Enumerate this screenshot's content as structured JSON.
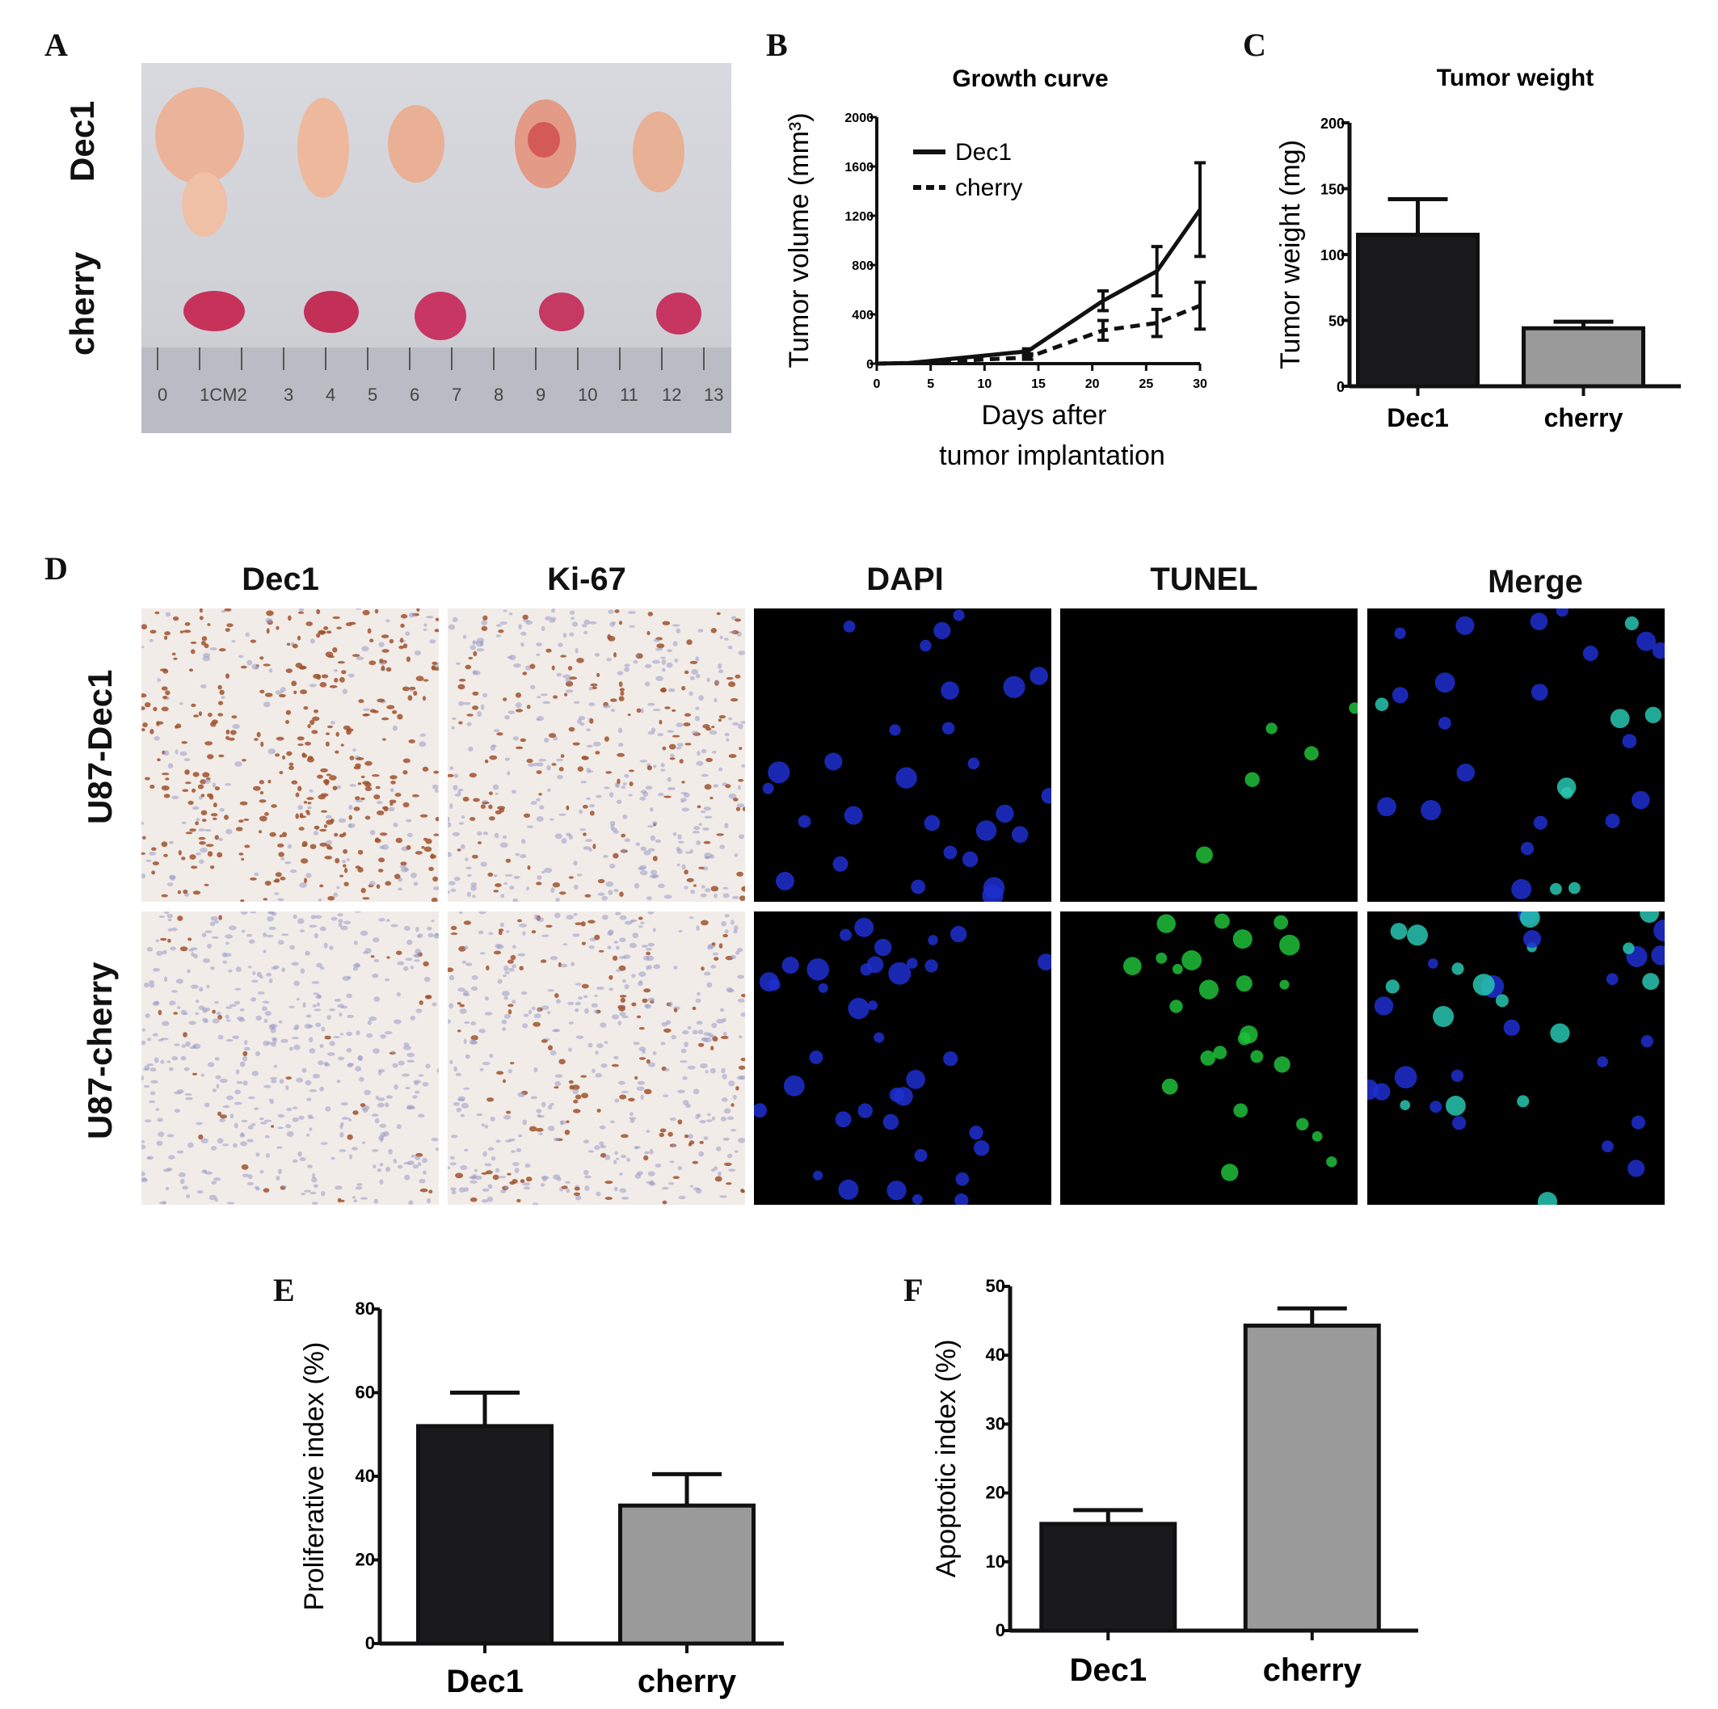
{
  "panels": {
    "A": {
      "letter": "A",
      "rows": [
        "Dec1",
        "cherry"
      ],
      "ruler_numbers": [
        "0",
        "1CM2",
        "3",
        "4",
        "5",
        "6",
        "7",
        "8",
        "9",
        "10",
        "11",
        "12",
        "13"
      ]
    },
    "B": {
      "letter": "B"
    },
    "C": {
      "letter": "C"
    },
    "D": {
      "letter": "D",
      "columns": [
        "Dec1",
        "Ki-67",
        "DAPI",
        "TUNEL",
        "Merge"
      ],
      "rows": [
        "U87-Dec1",
        "U87-cherry"
      ]
    },
    "E": {
      "letter": "E"
    },
    "F": {
      "letter": "F"
    }
  },
  "colors": {
    "dark_bar": "#1a1a1c",
    "grey_bar": "#9a9a9a",
    "axis": "#111111",
    "ihc_stain": "#a0522d",
    "dapi": "#1e2fd0",
    "tunel": "#1fbf3a"
  },
  "chart_data": [
    {
      "id": "B",
      "type": "line",
      "title": "Growth curve",
      "xlabel": "Days after tumor implantation",
      "xlabel_lines": [
        "Days after",
        "tumor implantation"
      ],
      "ylabel": "Tumor volume (mm³)",
      "xlim": [
        0,
        30
      ],
      "ylim": [
        0,
        2000
      ],
      "xticks": [
        0,
        5,
        10,
        15,
        20,
        25,
        30
      ],
      "yticks": [
        0,
        400,
        800,
        1200,
        1600,
        2000
      ],
      "legend_position": "top-left",
      "series": [
        {
          "name": "Dec1",
          "style": "solid",
          "x": [
            0,
            3,
            14,
            21,
            26,
            30
          ],
          "y": [
            0,
            5,
            100,
            510,
            750,
            1250
          ],
          "err": [
            0,
            0,
            20,
            80,
            200,
            380
          ]
        },
        {
          "name": "cherry",
          "style": "dashed",
          "x": [
            0,
            3,
            14,
            21,
            26,
            30
          ],
          "y": [
            0,
            5,
            50,
            270,
            330,
            470
          ],
          "err": [
            0,
            0,
            15,
            80,
            110,
            190
          ]
        }
      ]
    },
    {
      "id": "C",
      "type": "bar",
      "title": "Tumor weight",
      "ylabel": "Tumor weight (mg)",
      "categories": [
        "Dec1",
        "cherry"
      ],
      "values": [
        115,
        44
      ],
      "errors": [
        27,
        5
      ],
      "ylim": [
        0,
        200
      ],
      "yticks": [
        0,
        50,
        100,
        150,
        200
      ]
    },
    {
      "id": "E",
      "type": "bar",
      "title": "",
      "ylabel": "Proliferative index (%)",
      "categories": [
        "Dec1",
        "cherry"
      ],
      "values": [
        52,
        33
      ],
      "errors": [
        8,
        7.5
      ],
      "ylim": [
        0,
        80
      ],
      "yticks": [
        0,
        20,
        40,
        60,
        80
      ]
    },
    {
      "id": "F",
      "type": "bar",
      "title": "",
      "ylabel": "Apoptotic index (%)",
      "categories": [
        "Dec1",
        "cherry"
      ],
      "values": [
        15.5,
        44.3
      ],
      "errors": [
        2,
        2.5
      ],
      "ylim": [
        0,
        50
      ],
      "yticks": [
        0,
        10,
        20,
        30,
        40,
        50
      ]
    }
  ]
}
